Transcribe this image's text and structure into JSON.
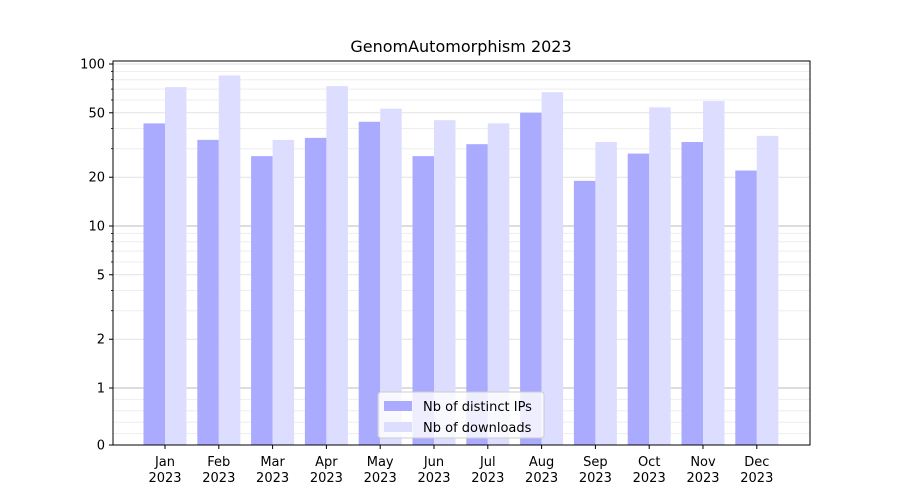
{
  "chart_data": {
    "type": "bar",
    "title": "GenomAutomorphism 2023",
    "xlabel": "",
    "ylabel": "",
    "yscale": "symlog",
    "ylim": [
      0,
      100
    ],
    "y_ticks": [
      0,
      1,
      2,
      5,
      10,
      20,
      50,
      100
    ],
    "y_tick_labels": [
      "0",
      "1",
      "2",
      "5",
      "10",
      "20",
      "50",
      "100"
    ],
    "grid": "horizontal",
    "categories": [
      "Jan\n2023",
      "Feb\n2023",
      "Mar\n2023",
      "Apr\n2023",
      "May\n2023",
      "Jun\n2023",
      "Jul\n2023",
      "Aug\n2023",
      "Sep\n2023",
      "Oct\n2023",
      "Nov\n2023",
      "Dec\n2023"
    ],
    "series": [
      {
        "name": "Nb of distinct IPs",
        "color": "#aaaaff",
        "values": [
          43,
          34,
          27,
          35,
          44,
          27,
          32,
          50,
          19,
          28,
          33,
          22
        ]
      },
      {
        "name": "Nb of downloads",
        "color": "#ddddff",
        "values": [
          72,
          85,
          34,
          73,
          53,
          45,
          43,
          67,
          33,
          54,
          59,
          36
        ]
      }
    ],
    "legend_position": "bottom-center"
  }
}
